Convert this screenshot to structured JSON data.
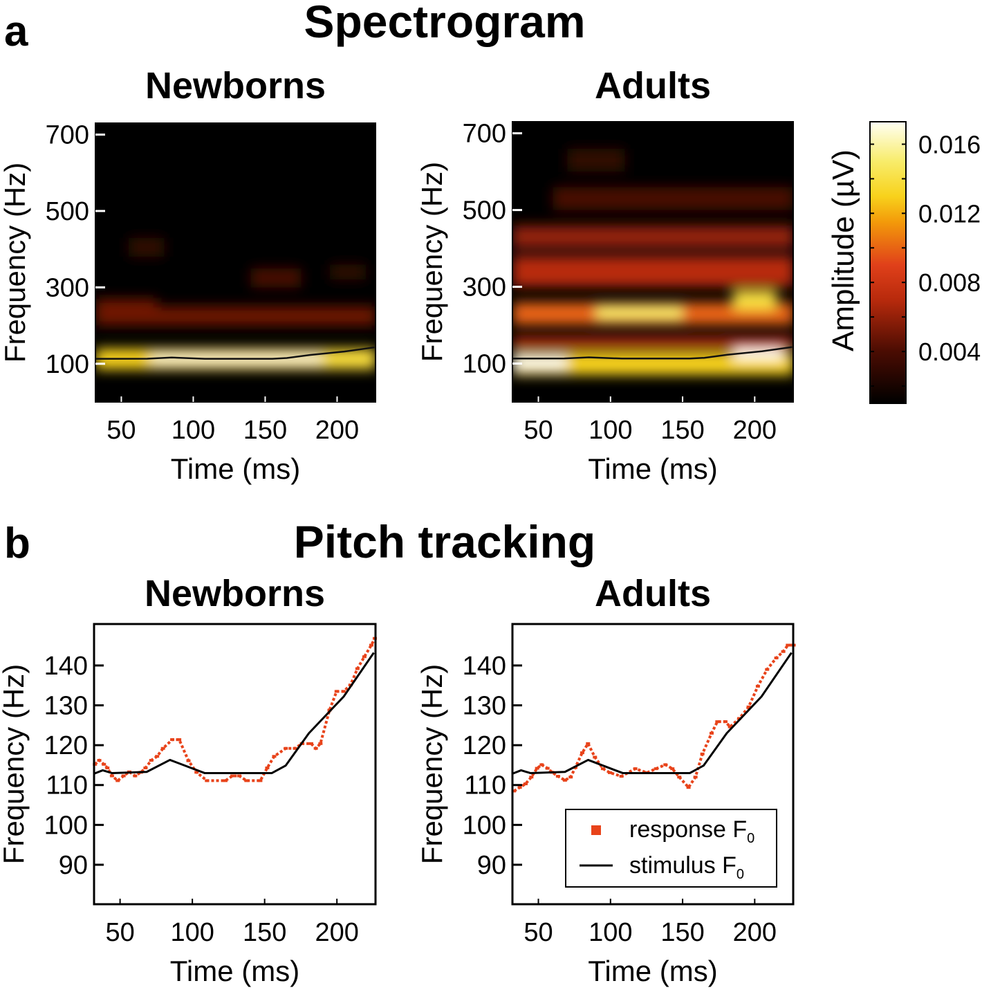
{
  "panel_letters": {
    "a": "a",
    "b": "b"
  },
  "colors": {
    "response": "#e8431a",
    "stimulus": "#000000",
    "axis": "#000000",
    "background": "#000000"
  },
  "chart_data": [
    {
      "id": "spec_newborns",
      "type": "heatmap",
      "section_title": "Spectrogram",
      "title": "Newborns",
      "xlabel": "Time (ms)",
      "ylabel": "Frequency (Hz)",
      "xlim": [
        32,
        226.7
      ],
      "ylim": [
        0,
        730
      ],
      "xticks": [
        50,
        100,
        150,
        200
      ],
      "yticks": [
        100,
        300,
        500,
        700
      ],
      "bands": [
        {
          "f": [
            85,
            140
          ],
          "t": [
            32,
            227
          ],
          "amp": 0.013
        },
        {
          "f": [
            100,
            125
          ],
          "t": [
            70,
            190
          ],
          "amp": 0.017
        },
        {
          "f": [
            95,
            130
          ],
          "t": [
            190,
            227
          ],
          "amp": 0.014
        },
        {
          "f": [
            200,
            250
          ],
          "t": [
            32,
            227
          ],
          "amp": 0.005
        },
        {
          "f": [
            240,
            270
          ],
          "t": [
            32,
            75
          ],
          "amp": 0.005
        },
        {
          "f": [
            300,
            350
          ],
          "t": [
            140,
            175
          ],
          "amp": 0.004
        },
        {
          "f": [
            320,
            360
          ],
          "t": [
            195,
            220
          ],
          "amp": 0.003
        },
        {
          "f": [
            380,
            430
          ],
          "t": [
            55,
            80
          ],
          "amp": 0.003
        }
      ],
      "contour_f0": {
        "t": [
          32,
          44,
          68,
          85,
          108,
          155,
          165,
          181,
          205,
          226
        ],
        "f": [
          113,
          113,
          113.3,
          116.3,
          113,
          113,
          115,
          123,
          132,
          143
        ]
      }
    },
    {
      "id": "spec_adults",
      "type": "heatmap",
      "title": "Adults",
      "xlabel": "Time (ms)",
      "ylabel": "Frequency (Hz)",
      "xlim": [
        32,
        226.7
      ],
      "ylim": [
        0,
        730
      ],
      "xticks": [
        50,
        100,
        150,
        200
      ],
      "yticks": [
        100,
        300,
        500,
        700
      ],
      "bands": [
        {
          "f": [
            70,
            130
          ],
          "t": [
            32,
            227
          ],
          "amp": 0.013
        },
        {
          "f": [
            85,
            120
          ],
          "t": [
            32,
            70
          ],
          "amp": 0.018
        },
        {
          "f": [
            110,
            150
          ],
          "t": [
            185,
            220
          ],
          "amp": 0.018
        },
        {
          "f": [
            140,
            170
          ],
          "t": [
            32,
            227
          ],
          "amp": 0.007
        },
        {
          "f": [
            200,
            260
          ],
          "t": [
            32,
            227
          ],
          "amp": 0.01
        },
        {
          "f": [
            215,
            250
          ],
          "t": [
            90,
            150
          ],
          "amp": 0.015
        },
        {
          "f": [
            240,
            290
          ],
          "t": [
            185,
            215
          ],
          "amp": 0.014
        },
        {
          "f": [
            300,
            380
          ],
          "t": [
            32,
            227
          ],
          "amp": 0.007
        },
        {
          "f": [
            400,
            460
          ],
          "t": [
            32,
            227
          ],
          "amp": 0.006
        },
        {
          "f": [
            500,
            560
          ],
          "t": [
            60,
            227
          ],
          "amp": 0.004
        },
        {
          "f": [
            600,
            660
          ],
          "t": [
            70,
            110
          ],
          "amp": 0.003
        }
      ],
      "contour_f0": {
        "t": [
          32,
          44,
          68,
          85,
          108,
          155,
          165,
          181,
          205,
          226
        ],
        "f": [
          113,
          113,
          113.3,
          116.3,
          113,
          113,
          115,
          123,
          132,
          143
        ]
      }
    },
    {
      "id": "pitch_newborns",
      "type": "line",
      "section_title": "Pitch tracking",
      "title": "Newborns",
      "xlabel": "Time (ms)",
      "ylabel": "Frequency (Hz)",
      "xlim": [
        32,
        226.7
      ],
      "ylim": [
        80.1,
        150.4
      ],
      "xticks": [
        50,
        100,
        150,
        200
      ],
      "yticks": [
        90,
        100,
        110,
        120,
        130,
        140
      ],
      "series": [
        {
          "name": "response F0",
          "style": "markers",
          "x": [
            32.6,
            35.6,
            38.8,
            41.2,
            44.4,
            48.4,
            52.4,
            56.4,
            60.4,
            64.4,
            67.6,
            71.6,
            75.6,
            79.7,
            86.1,
            90.9,
            97.3,
            102.9,
            110.1,
            122.9,
            127.7,
            132.5,
            137.4,
            147,
            151.8,
            156.6,
            164.6,
            171,
            175.8,
            182.2,
            185.4,
            188.6,
            194.9,
            199.8,
            204.6,
            209.4,
            214.2,
            219,
            223.8,
            226.2
          ],
          "y": [
            115.2,
            116.2,
            115.2,
            114.3,
            112.3,
            111.1,
            112.3,
            113.3,
            112.3,
            113.2,
            114.3,
            116.2,
            117.2,
            119.2,
            121.4,
            121.4,
            116.1,
            113.2,
            111.1,
            111.1,
            112.3,
            112.3,
            111.1,
            111.1,
            114.3,
            117.2,
            119.2,
            119.2,
            120.4,
            120.4,
            119.2,
            120.4,
            128.8,
            133.5,
            133.5,
            135.1,
            139.2,
            142.2,
            145.1,
            146.8
          ]
        },
        {
          "name": "stimulus F0",
          "style": "line",
          "x": [
            32.4,
            38,
            44.4,
            68.4,
            84.5,
            108.5,
            155,
            164.6,
            180.6,
            204.7,
            225.5
          ],
          "y": [
            112.9,
            113.7,
            113,
            113.3,
            116.3,
            113,
            113,
            114.9,
            123,
            132.2,
            143.2
          ]
        }
      ]
    },
    {
      "id": "pitch_adults",
      "type": "line",
      "title": "Adults",
      "xlabel": "Time (ms)",
      "ylabel": "Frequency (Hz)",
      "xlim": [
        32,
        226.7
      ],
      "ylim": [
        80.1,
        150.4
      ],
      "xticks": [
        50,
        100,
        150,
        200
      ],
      "yticks": [
        90,
        100,
        110,
        120,
        130,
        140
      ],
      "legend": {
        "placement": "lower-right",
        "entries": [
          {
            "label": "response F",
            "sub": "0"
          },
          {
            "label": "stimulus F",
            "sub": "0"
          }
        ]
      },
      "series": [
        {
          "name": "response F0",
          "style": "markers",
          "x": [
            33.1,
            37.1,
            41.1,
            45.1,
            49.1,
            52.3,
            56.3,
            59.5,
            63.6,
            68.4,
            72.4,
            75.6,
            80.4,
            84.4,
            89.2,
            94.8,
            99.6,
            107.6,
            117.2,
            125.3,
            131.6,
            138.1,
            142.9,
            147.7,
            154.1,
            158.9,
            163.7,
            170.1,
            174.1,
            179.7,
            182.9,
            189.3,
            195.8,
            202.2,
            208.6,
            215,
            219.8,
            223,
            227
          ],
          "y": [
            108.5,
            109.4,
            110.3,
            112,
            114.2,
            115.1,
            114.2,
            113.2,
            112.2,
            111.2,
            112,
            114.4,
            118.1,
            120.4,
            117,
            114.1,
            113.1,
            112.2,
            114.1,
            113.1,
            114.1,
            115.1,
            114.1,
            112,
            109.4,
            112,
            117.8,
            123,
            125.9,
            125.9,
            124.6,
            126.7,
            129.6,
            134.8,
            139,
            141.9,
            143.5,
            145.1,
            145.1
          ]
        },
        {
          "name": "stimulus F0",
          "style": "line",
          "x": [
            32.4,
            38,
            44.4,
            68.4,
            84.5,
            108.5,
            155,
            164.6,
            180.6,
            204.7,
            225.5
          ],
          "y": [
            112.9,
            113.7,
            113,
            113.3,
            116.3,
            113,
            113,
            114.9,
            123,
            132.2,
            143.2
          ]
        }
      ]
    },
    {
      "id": "colorbar",
      "type": "colorbar",
      "label": "Amplitude (µV)",
      "range": [
        0.001,
        0.0173
      ],
      "ticks": [
        0.004,
        0.008,
        0.012,
        0.016
      ],
      "tick_labels": [
        "0.004",
        "0.008",
        "0.012",
        "0.016"
      ],
      "colormap": [
        [
          0.001,
          "#000000"
        ],
        [
          0.004,
          "#4a0c02"
        ],
        [
          0.007,
          "#b82a0c"
        ],
        [
          0.009,
          "#e0401a"
        ],
        [
          0.0115,
          "#f39a0a"
        ],
        [
          0.013,
          "#f8d21c"
        ],
        [
          0.015,
          "#f8ec6a"
        ],
        [
          0.0173,
          "#fffff4"
        ]
      ]
    }
  ]
}
